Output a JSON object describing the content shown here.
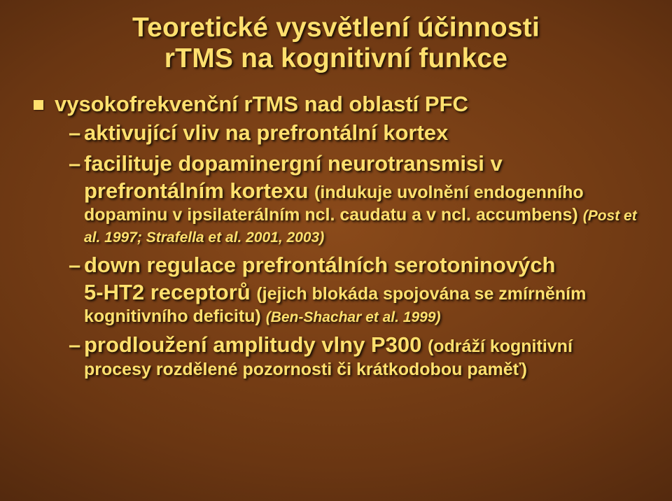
{
  "title_line1": "Teoretické vysvětlení účinnosti",
  "title_line2": "rTMS na kognitivní funkce",
  "bullet_main": "vysokofrekvenční rTMS nad oblastí PFC",
  "sub1_a": "aktivující vliv na prefrontální kortex",
  "sub2_a": "facilituje dopaminergní neurotransmisi v",
  "sub2_b": "prefrontálním kortexu ",
  "sub2_small1": "(indukuje uvolnění endogenního",
  "sub2_small2": "dopaminu v ipsilaterálním ncl. caudatu a v ncl. accumbens)  ",
  "sub2_ref": "(Post et al. 1997; Strafella et al. 2001, 2003)",
  "sub3_a": "down regulace prefrontálních serotoninových",
  "sub3_b": "5-HT2 receptorů ",
  "sub3_small1": "(jejich blokáda spojována se zmírněním",
  "sub3_small2": "kognitivního deficitu)    ",
  "sub3_ref": "(Ben-Shachar et al. 1999)",
  "sub4_a": "prodloužení amplitudy vlny P300 ",
  "sub4_small1": "(odráží kognitivní",
  "sub4_small2": "procesy rozdělené pozornosti či krátkodobou paměť)"
}
